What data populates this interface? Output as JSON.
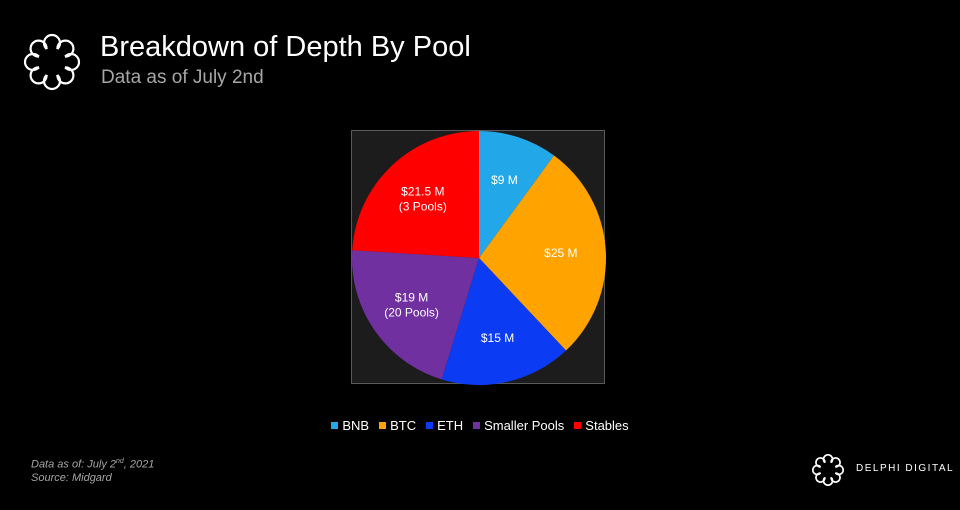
{
  "header": {
    "title": "Breakdown of Depth By Pool",
    "subtitle": "Data as of July 2nd"
  },
  "chart_data": {
    "type": "pie",
    "title": "Breakdown of Depth By Pool",
    "subtitle": "Data as of July 2nd",
    "slices": [
      {
        "name": "BNB",
        "value": 9,
        "label": "$9 M",
        "sublabel": "",
        "color": "#22a8e8"
      },
      {
        "name": "BTC",
        "value": 25,
        "label": "$25 M",
        "sublabel": "",
        "color": "#ffa300"
      },
      {
        "name": "ETH",
        "value": 15,
        "label": "$15 M",
        "sublabel": "",
        "color": "#0b3bf2"
      },
      {
        "name": "Smaller Pools",
        "value": 19,
        "label": "$19 M",
        "sublabel": "(20 Pools)",
        "color": "#7030a0"
      },
      {
        "name": "Stables",
        "value": 21.5,
        "label": "$21.5 M",
        "sublabel": "(3 Pools)",
        "color": "#ff0000"
      }
    ],
    "legend_position": "bottom"
  },
  "footer": {
    "date_prefix": "Data as of: July 2",
    "date_sup": "nd",
    "date_suffix": ", 2021",
    "source": "Source: Midgard",
    "brand": "DELPHI DIGITAL"
  },
  "icons": {
    "logo": "delphi-flower-icon",
    "brand_logo": "delphi-flower-icon"
  }
}
